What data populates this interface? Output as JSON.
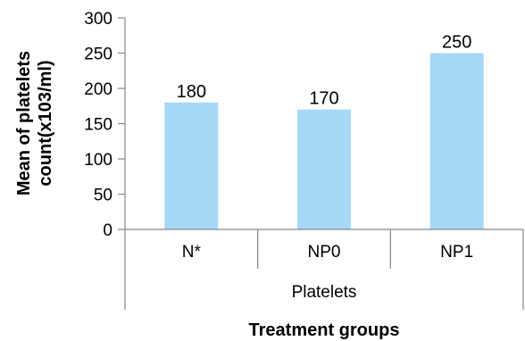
{
  "chart_data": {
    "type": "bar",
    "categories": [
      "N*",
      "NP0",
      "NP1"
    ],
    "group_label": "Platelets",
    "values": [
      180,
      170,
      250
    ],
    "data_labels": [
      "180",
      "170",
      "250"
    ],
    "xlabel": "Treatment groups",
    "ylabel_lines": [
      "Mean of platelets",
      "count(x103/ml)"
    ],
    "ylim": [
      0,
      300
    ],
    "yticks": [
      0,
      50,
      100,
      150,
      200,
      250,
      300
    ],
    "grid": false,
    "legend": "none",
    "colors": {
      "bar": "#a6d8f6",
      "axis": "#868686",
      "text": "#000000"
    }
  }
}
